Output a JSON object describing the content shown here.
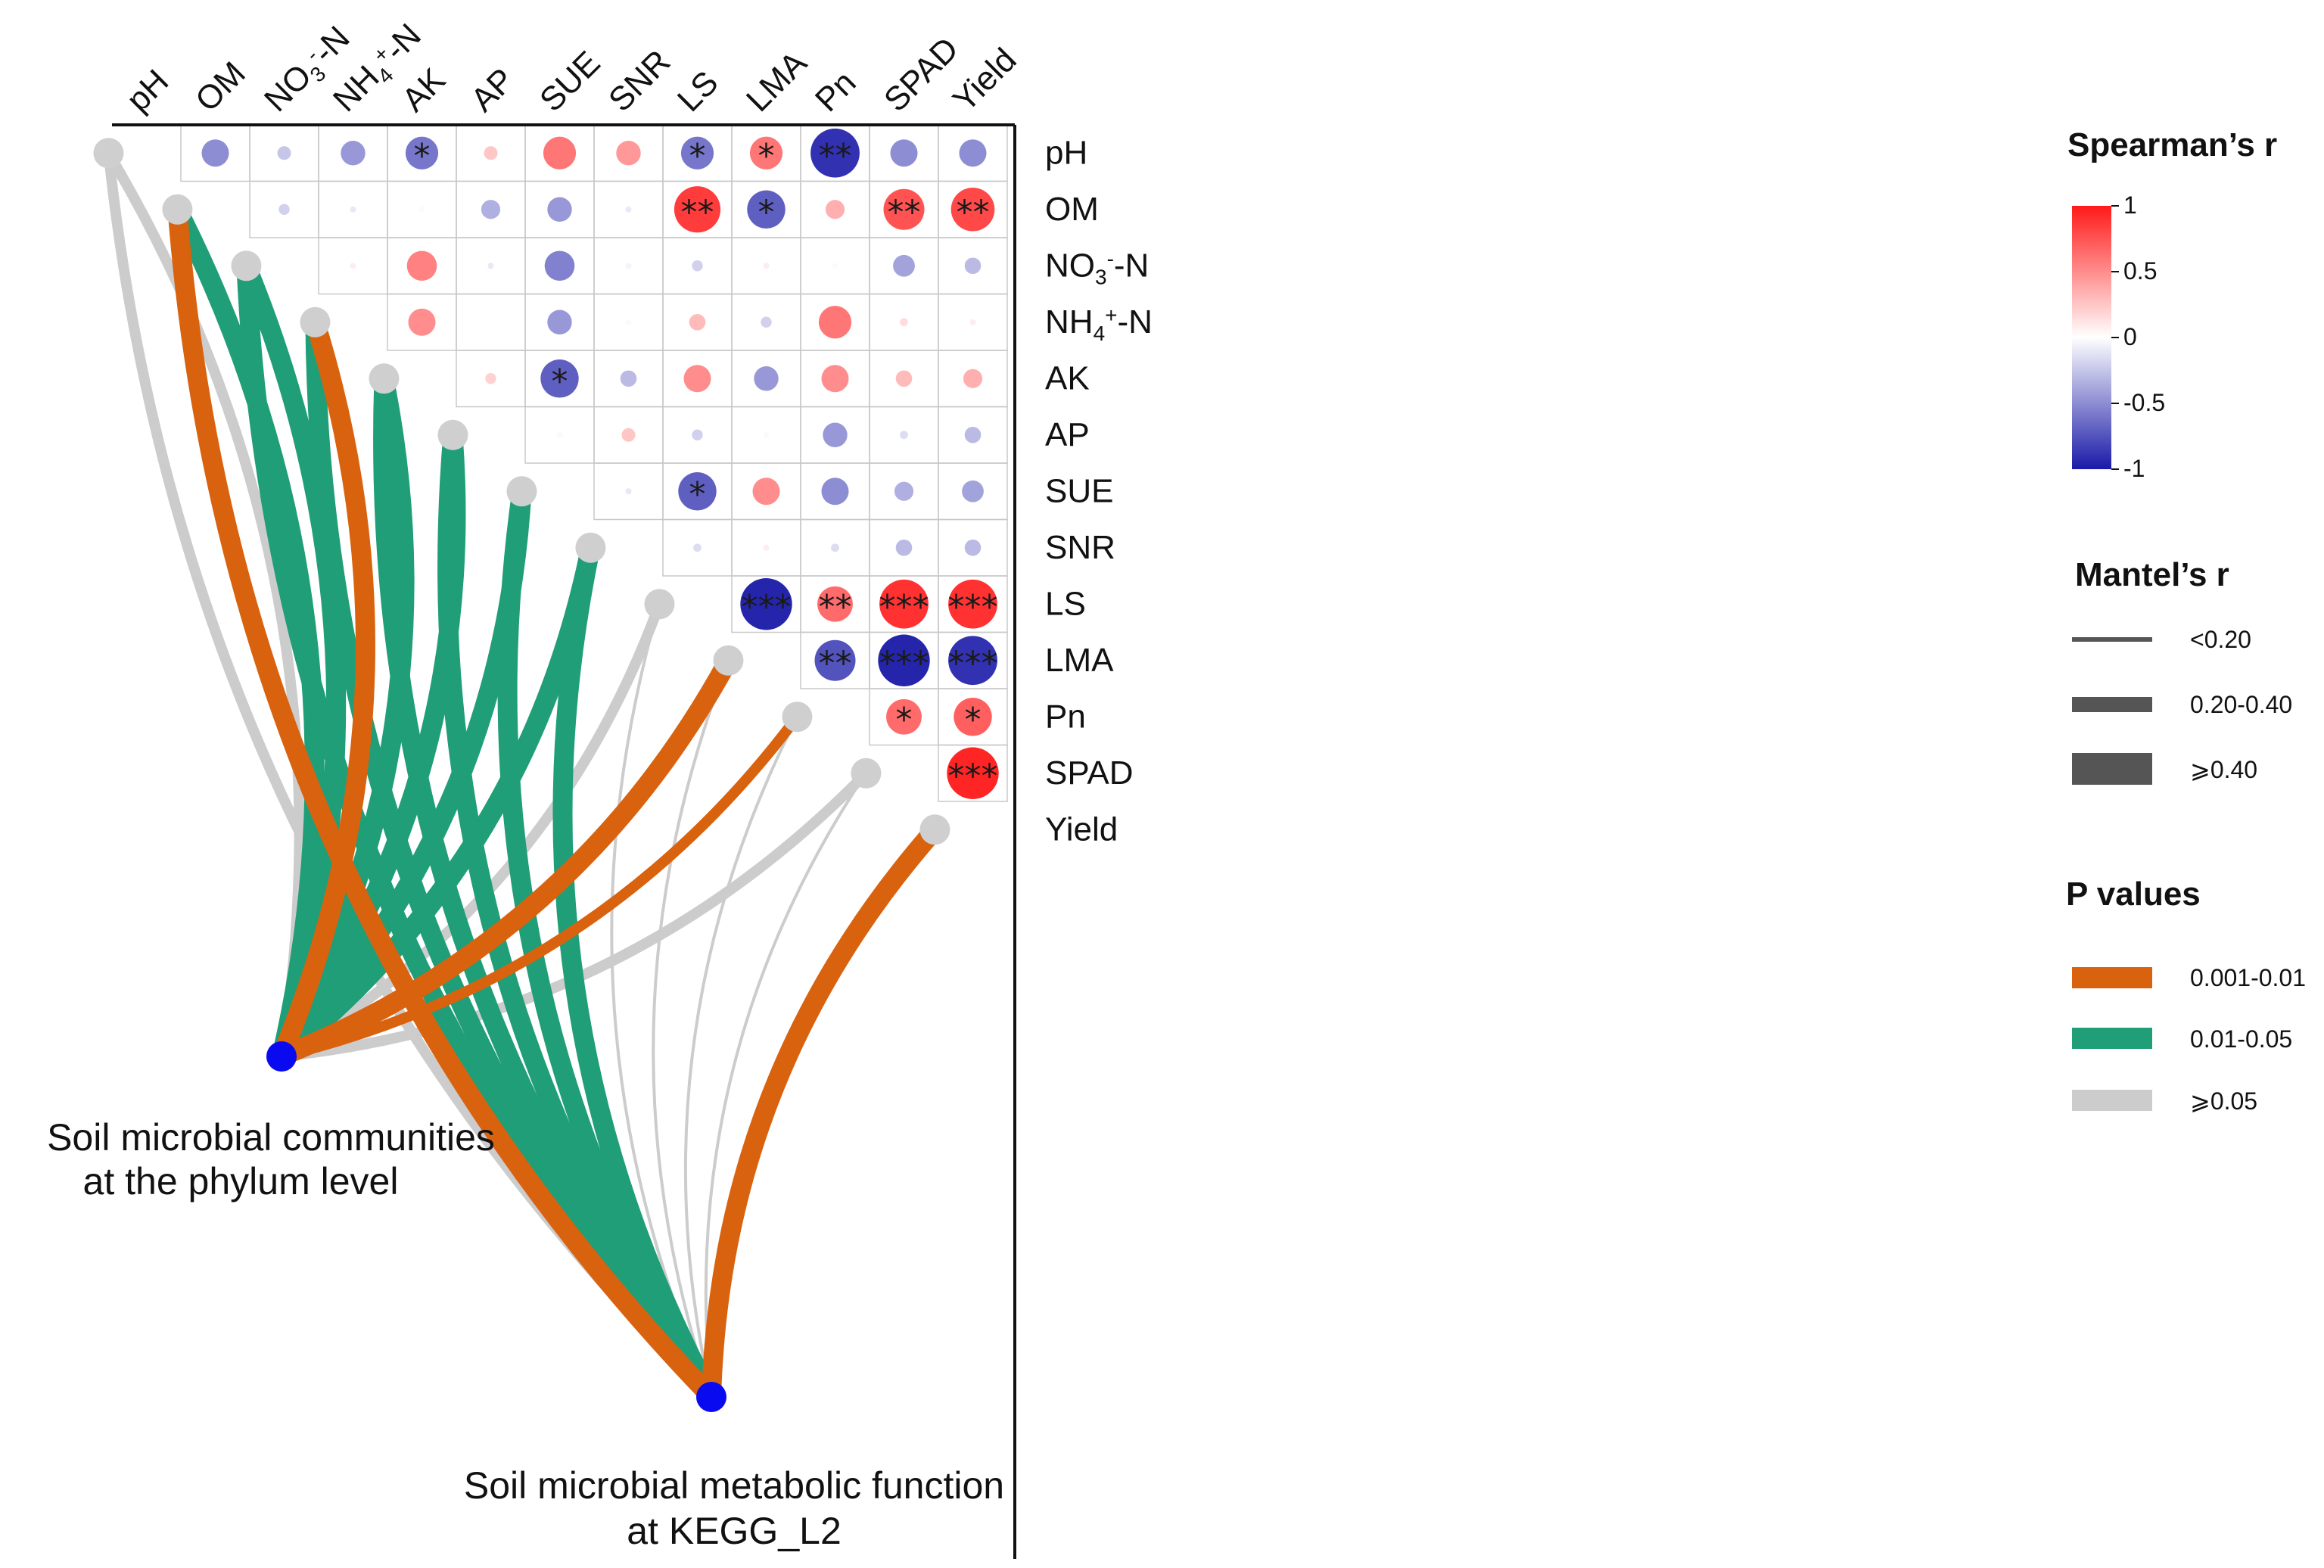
{
  "chart_data": {
    "type": "heatmap",
    "subtype": "mantel-test-correlation-heatmap",
    "variables": [
      "pH",
      "OM",
      "NO3--N",
      "NH4+-N",
      "AK",
      "AP",
      "SUE",
      "SNR",
      "LS",
      "LMA",
      "Pn",
      "SPAD",
      "Yield"
    ],
    "top_labels": [
      {
        "id": "pH",
        "text": "pH"
      },
      {
        "id": "OM",
        "text": "OM"
      },
      {
        "id": "NO3",
        "text": "NO",
        "sub": "3",
        "sup": "-",
        "tail": "-N"
      },
      {
        "id": "NH4",
        "text": "NH",
        "sub": "4",
        "sup": "+",
        "tail": "-N"
      },
      {
        "id": "AK",
        "text": "AK"
      },
      {
        "id": "AP",
        "text": "AP"
      },
      {
        "id": "SUE",
        "text": "SUE"
      },
      {
        "id": "SNR",
        "text": "SNR"
      },
      {
        "id": "LS",
        "text": "LS"
      },
      {
        "id": "LMA",
        "text": "LMA"
      },
      {
        "id": "Pn",
        "text": "Pn"
      },
      {
        "id": "SPAD",
        "text": "SPAD"
      },
      {
        "id": "Yield",
        "text": "Yield"
      }
    ],
    "right_labels": [
      {
        "id": "pH",
        "text": "pH"
      },
      {
        "id": "OM",
        "text": "OM"
      },
      {
        "id": "NO3",
        "text": "NO",
        "sub": "3",
        "sup": "-",
        "tail": "-N"
      },
      {
        "id": "NH4",
        "text": "NH",
        "sub": "4",
        "sup": "+",
        "tail": "-N"
      },
      {
        "id": "AK",
        "text": "AK"
      },
      {
        "id": "AP",
        "text": "AP"
      },
      {
        "id": "SUE",
        "text": "SUE"
      },
      {
        "id": "SNR",
        "text": "SNR"
      },
      {
        "id": "LS",
        "text": "LS"
      },
      {
        "id": "LMA",
        "text": "LMA"
      },
      {
        "id": "Pn",
        "text": "Pn"
      },
      {
        "id": "SPAD",
        "text": "SPAD"
      },
      {
        "id": "Yield",
        "text": "Yield"
      }
    ],
    "spearman_r": [
      [
        null,
        -0.5,
        -0.25,
        -0.45,
        -0.6,
        0.25,
        0.6,
        0.45,
        -0.6,
        0.6,
        -0.9,
        -0.5,
        -0.5
      ],
      [
        null,
        null,
        -0.2,
        -0.1,
        0.02,
        -0.35,
        -0.45,
        -0.1,
        0.85,
        -0.7,
        0.35,
        0.75,
        0.8
      ],
      [
        null,
        null,
        null,
        0.08,
        0.55,
        -0.1,
        -0.55,
        -0.05,
        -0.2,
        0.08,
        0.02,
        -0.4,
        -0.3
      ],
      [
        null,
        null,
        null,
        null,
        0.5,
        0.0,
        -0.45,
        0.02,
        0.3,
        -0.2,
        0.6,
        0.15,
        0.08
      ],
      [
        null,
        null,
        null,
        null,
        null,
        0.2,
        -0.7,
        -0.3,
        0.5,
        -0.45,
        0.5,
        0.3,
        0.35
      ],
      [
        null,
        null,
        null,
        null,
        null,
        null,
        0.03,
        0.25,
        -0.2,
        0.03,
        -0.45,
        -0.15,
        -0.3
      ],
      [
        null,
        null,
        null,
        null,
        null,
        null,
        null,
        -0.1,
        -0.7,
        0.5,
        -0.5,
        -0.35,
        -0.4
      ],
      [
        null,
        null,
        null,
        null,
        null,
        null,
        null,
        null,
        -0.15,
        0.08,
        -0.15,
        -0.3,
        -0.3
      ],
      [
        null,
        null,
        null,
        null,
        null,
        null,
        null,
        null,
        null,
        -0.95,
        0.65,
        0.9,
        0.9
      ],
      [
        null,
        null,
        null,
        null,
        null,
        null,
        null,
        null,
        null,
        null,
        -0.75,
        -0.95,
        -0.9
      ],
      [
        null,
        null,
        null,
        null,
        null,
        null,
        null,
        null,
        null,
        null,
        null,
        0.65,
        0.7
      ],
      [
        null,
        null,
        null,
        null,
        null,
        null,
        null,
        null,
        null,
        null,
        null,
        null,
        0.95
      ],
      [
        null,
        null,
        null,
        null,
        null,
        null,
        null,
        null,
        null,
        null,
        null,
        null,
        null
      ]
    ],
    "significance": [
      [
        "",
        "",
        "",
        "",
        "*",
        "",
        "",
        "",
        "*",
        "*",
        "**",
        "",
        ""
      ],
      [
        "",
        "",
        "",
        "",
        "",
        "",
        "",
        "",
        "**",
        "*",
        "",
        "**",
        "**"
      ],
      [
        "",
        "",
        "",
        "",
        "",
        "",
        "",
        "",
        "",
        "",
        "",
        "",
        ""
      ],
      [
        "",
        "",
        "",
        "",
        "",
        "",
        "",
        "",
        "",
        "",
        "",
        "",
        ""
      ],
      [
        "",
        "",
        "",
        "",
        "",
        "",
        "*",
        "",
        "",
        "",
        "",
        "",
        ""
      ],
      [
        "",
        "",
        "",
        "",
        "",
        "",
        "",
        "",
        "",
        "",
        "",
        "",
        ""
      ],
      [
        "",
        "",
        "",
        "",
        "",
        "",
        "",
        "",
        "*",
        "",
        "",
        "",
        ""
      ],
      [
        "",
        "",
        "",
        "",
        "",
        "",
        "",
        "",
        "",
        "",
        "",
        "",
        ""
      ],
      [
        "",
        "",
        "",
        "",
        "",
        "",
        "",
        "",
        "",
        "***",
        "**",
        "***",
        "***"
      ],
      [
        "",
        "",
        "",
        "",
        "",
        "",
        "",
        "",
        "",
        "",
        "**",
        "***",
        "***"
      ],
      [
        "",
        "",
        "",
        "",
        "",
        "",
        "",
        "",
        "",
        "",
        "",
        "*",
        "*"
      ],
      [
        "",
        "",
        "",
        "",
        "",
        "",
        "",
        "",
        "",
        "",
        "",
        "",
        "***"
      ],
      [
        "",
        "",
        "",
        "",
        "",
        "",
        "",
        "",
        "",
        "",
        "",
        "",
        ""
      ]
    ],
    "mantel_sources": [
      {
        "id": "phylum",
        "label_lines": [
          "Soil microbial communities",
          "at the phylum level"
        ]
      },
      {
        "id": "kegg",
        "label_lines": [
          "Soil microbial metabolic function",
          "at KEGG_L2"
        ]
      }
    ],
    "mantel_links": [
      {
        "from": "phylum",
        "to": "pH",
        "r_class": "0.20-0.40",
        "p_class": ">=0.05"
      },
      {
        "from": "phylum",
        "to": "OM",
        "r_class": ">=0.40",
        "p_class": "0.01-0.05"
      },
      {
        "from": "phylum",
        "to": "NO3--N",
        "r_class": ">=0.40",
        "p_class": "0.01-0.05"
      },
      {
        "from": "phylum",
        "to": "NH4+-N",
        "r_class": ">=0.40",
        "p_class": "0.001-0.01"
      },
      {
        "from": "phylum",
        "to": "AK",
        "r_class": ">=0.40",
        "p_class": "0.01-0.05"
      },
      {
        "from": "phylum",
        "to": "AP",
        "r_class": ">=0.40",
        "p_class": "0.01-0.05"
      },
      {
        "from": "phylum",
        "to": "SUE",
        "r_class": ">=0.40",
        "p_class": "0.01-0.05"
      },
      {
        "from": "phylum",
        "to": "SNR",
        "r_class": ">=0.40",
        "p_class": "0.01-0.05"
      },
      {
        "from": "phylum",
        "to": "LS",
        "r_class": "0.20-0.40",
        "p_class": ">=0.05"
      },
      {
        "from": "phylum",
        "to": "LMA",
        "r_class": ">=0.40",
        "p_class": "0.001-0.01"
      },
      {
        "from": "phylum",
        "to": "Pn",
        "r_class": "0.20-0.40",
        "p_class": "0.001-0.01"
      },
      {
        "from": "phylum",
        "to": "SPAD",
        "r_class": "0.20-0.40",
        "p_class": ">=0.05"
      },
      {
        "from": "kegg",
        "to": "pH",
        "r_class": "0.20-0.40",
        "p_class": ">=0.05"
      },
      {
        "from": "kegg",
        "to": "OM",
        "r_class": ">=0.40",
        "p_class": "0.001-0.01"
      },
      {
        "from": "kegg",
        "to": "NO3--N",
        "r_class": ">=0.40",
        "p_class": "0.01-0.05"
      },
      {
        "from": "kegg",
        "to": "NH4+-N",
        "r_class": ">=0.40",
        "p_class": "0.01-0.05"
      },
      {
        "from": "kegg",
        "to": "AK",
        "r_class": ">=0.40",
        "p_class": "0.01-0.05"
      },
      {
        "from": "kegg",
        "to": "AP",
        "r_class": ">=0.40",
        "p_class": "0.01-0.05"
      },
      {
        "from": "kegg",
        "to": "SUE",
        "r_class": ">=0.40",
        "p_class": "0.01-0.05"
      },
      {
        "from": "kegg",
        "to": "SNR",
        "r_class": ">=0.40",
        "p_class": "0.01-0.05"
      },
      {
        "from": "kegg",
        "to": "LS",
        "r_class": "<0.20",
        "p_class": ">=0.05"
      },
      {
        "from": "kegg",
        "to": "LMA",
        "r_class": "<0.20",
        "p_class": ">=0.05"
      },
      {
        "from": "kegg",
        "to": "Pn",
        "r_class": "<0.20",
        "p_class": ">=0.05"
      },
      {
        "from": "kegg",
        "to": "SPAD",
        "r_class": "<0.20",
        "p_class": ">=0.05"
      },
      {
        "from": "kegg",
        "to": "Yield",
        "r_class": ">=0.40",
        "p_class": "0.001-0.01"
      }
    ],
    "legend": {
      "spearman_title": "Spearman’s r",
      "spearman_ticks": [
        "1",
        "0.5",
        "0",
        "-0.5",
        "-1"
      ],
      "mantel_title": "Mantel’s r",
      "mantel_items": [
        "<0.20",
        "0.20-0.40",
        "⩾0.40"
      ],
      "p_title": "P values",
      "p_items": [
        "0.001-0.01",
        "0.01-0.05",
        "⩾0.05"
      ]
    },
    "colors": {
      "positive": "#ff1a1a",
      "negative": "#1a1aa8",
      "zero": "#ffffff",
      "p_0001_001": "#d9620f",
      "p_001_005": "#1f9e77",
      "p_ge_005": "#cccccc",
      "node_target": "#cfcfcf",
      "node_source": "#0a0af0",
      "grid": "#c8c8c8"
    }
  }
}
